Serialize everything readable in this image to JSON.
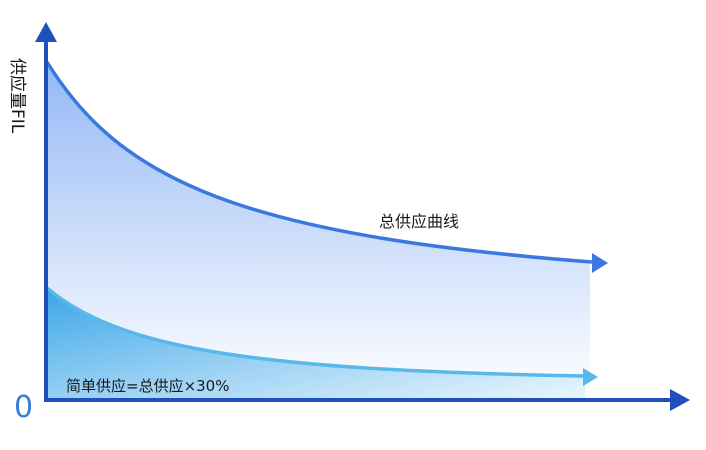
{
  "diagram": {
    "y_axis_label": "供应量FIL",
    "origin_label": "0",
    "curves": {
      "total": {
        "label": "总供应曲线"
      },
      "simple": {
        "label": "简单供应=总供应×30%"
      }
    }
  },
  "colors": {
    "axis": "#1e4fbd",
    "origin": "#3a7bd5",
    "total_curve": "#3a78e0",
    "total_fill_top": "#8db4f5",
    "simple_curve": "#58b8ea",
    "simple_fill": "#3aa6e8",
    "text": "#1a1a1a"
  }
}
